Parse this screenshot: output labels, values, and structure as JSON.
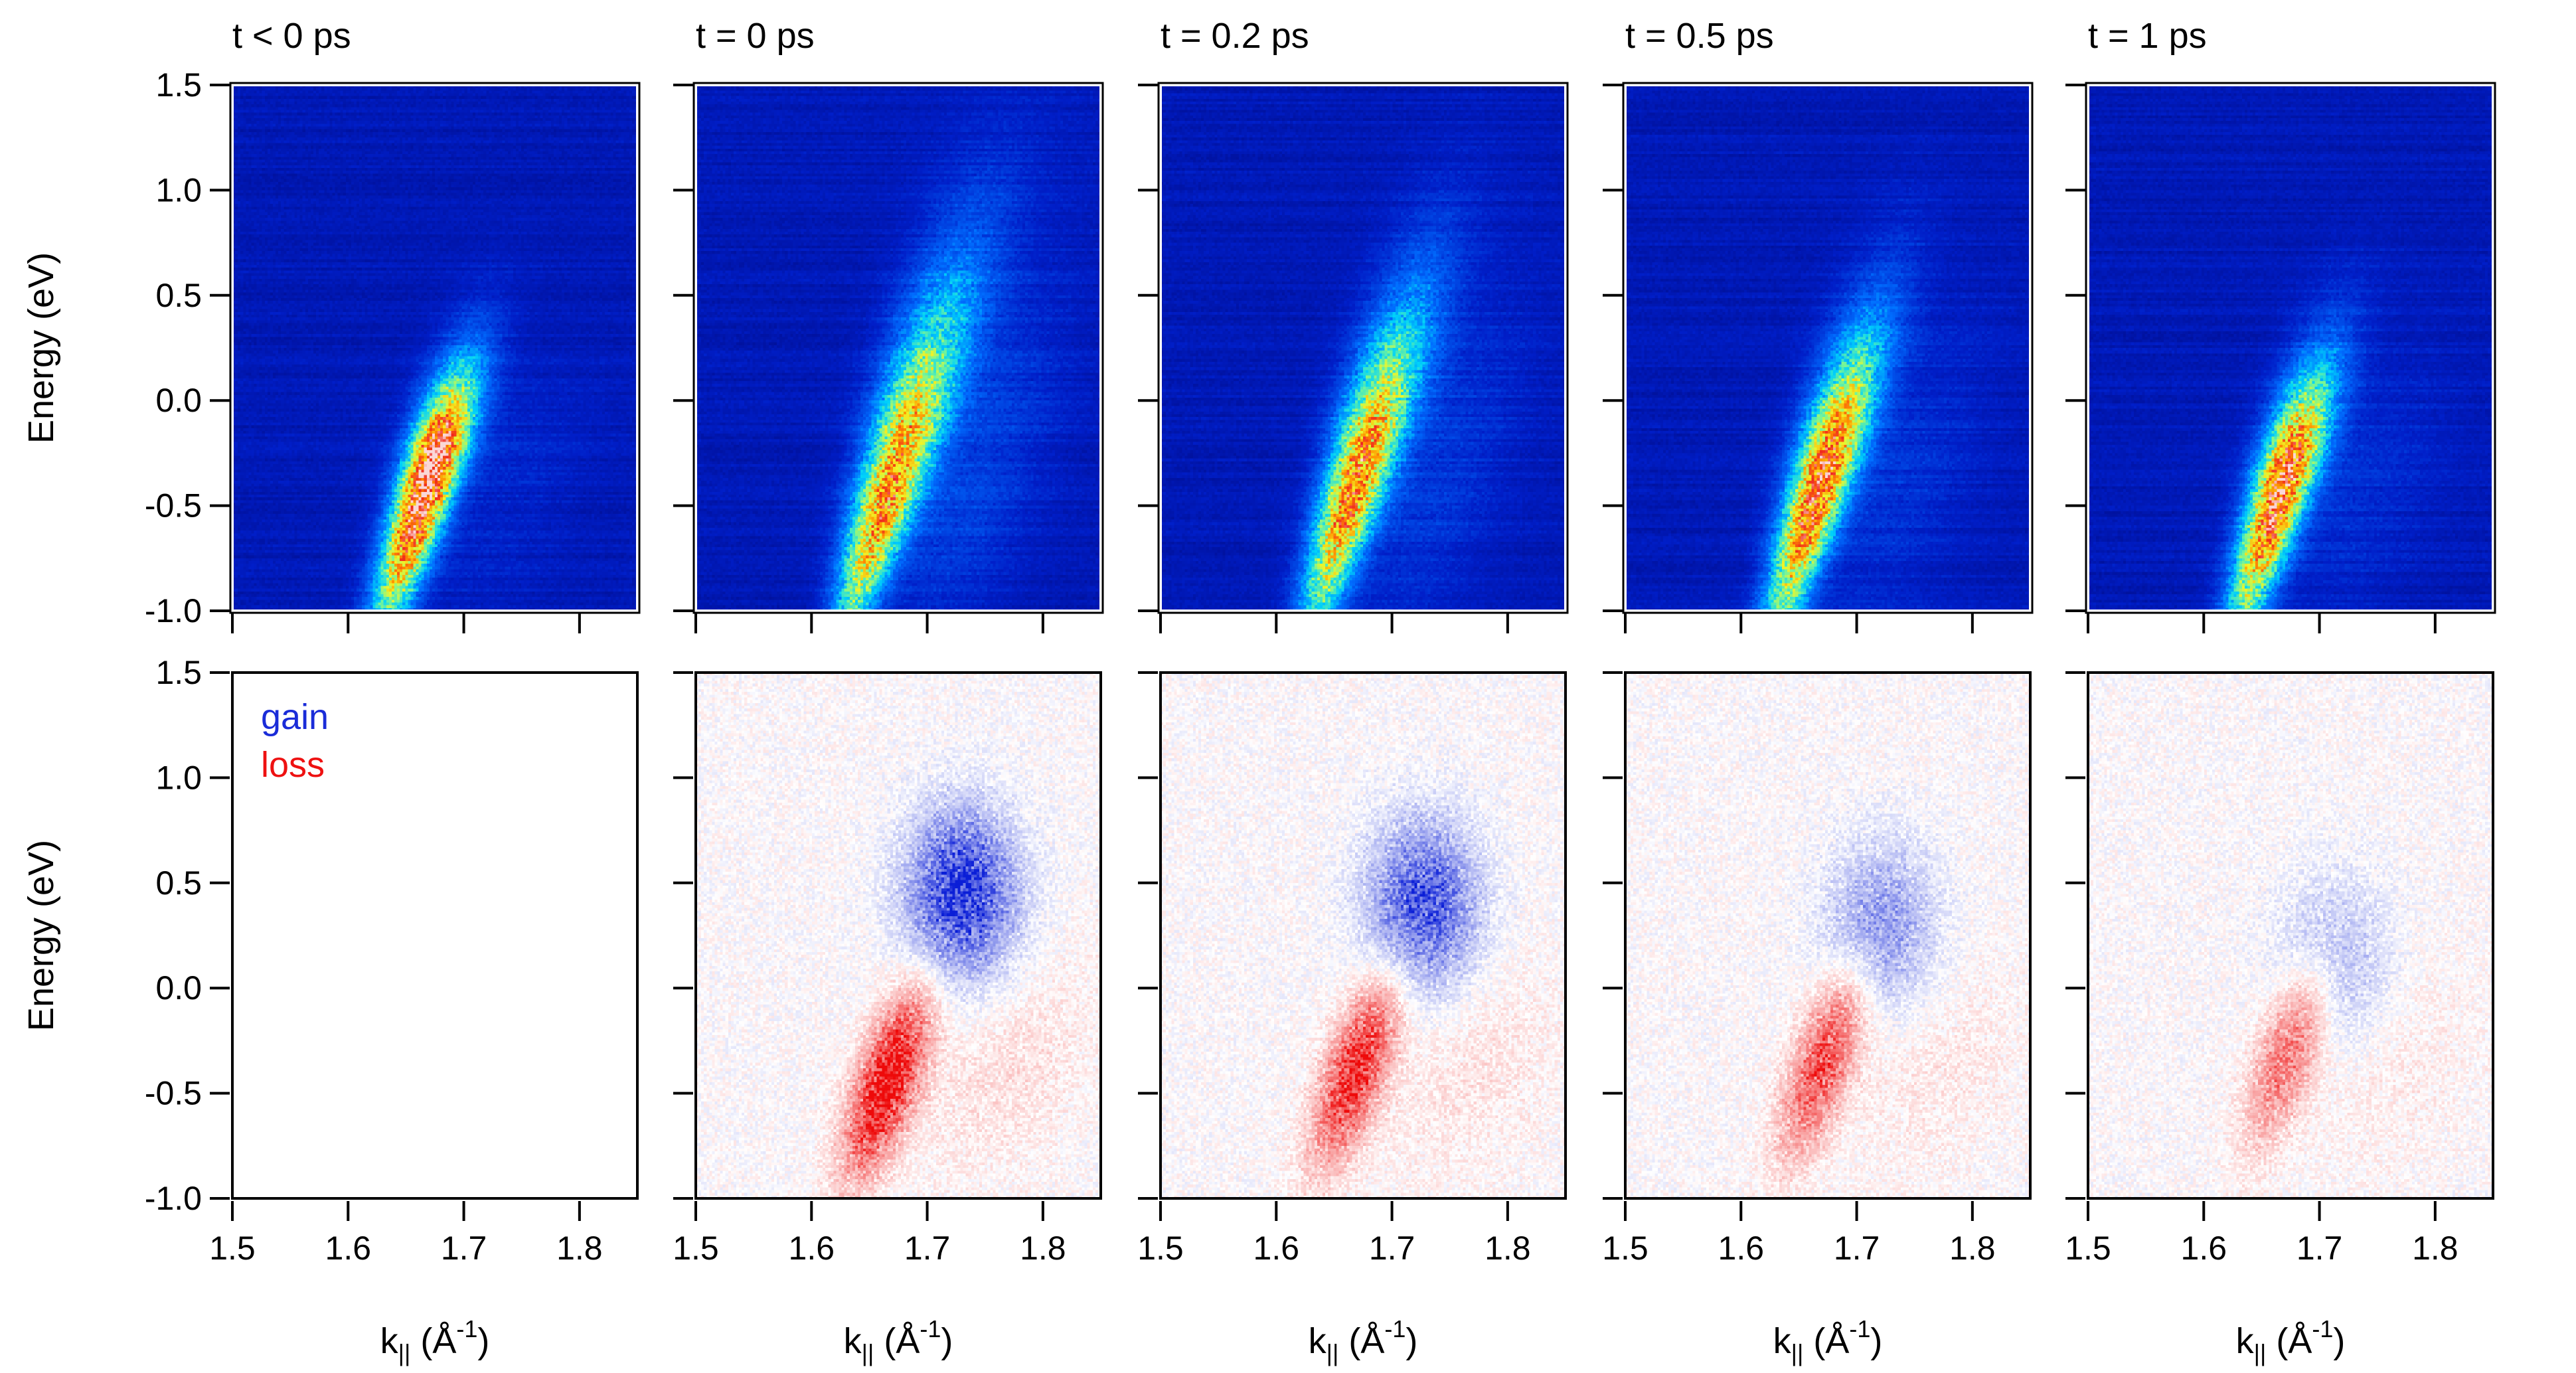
{
  "chart_data": {
    "type": "heatmap",
    "description_panels": "ARPES intensity maps (top row) and difference maps (bottom row) for five pump-probe delays",
    "time_labels": [
      "t < 0 ps",
      "t = 0 ps",
      "t = 0.2 ps",
      "t = 0.5 ps",
      "t = 1 ps"
    ],
    "ylabel": "Energy (eV)",
    "xlabel_base": "k",
    "xlabel_sub": "||",
    "xlabel_unit_open": " (Å",
    "xlabel_unit_sup": "-1",
    "xlabel_unit_close": ")",
    "xlim": [
      1.5,
      1.85
    ],
    "ylim": [
      -1.0,
      1.5
    ],
    "xticks": [
      1.5,
      1.6,
      1.7,
      1.8
    ],
    "xtick_labels": [
      "1.5",
      "1.6",
      "1.7",
      "1.8"
    ],
    "yticks": [
      -1.0,
      -0.5,
      0.0,
      0.5,
      1.0,
      1.5
    ],
    "ytick_labels": [
      "-1.0",
      "-0.5",
      "0.0",
      "0.5",
      "1.0",
      "1.5"
    ],
    "legend": [
      {
        "label": "gain",
        "color": "#1a2cd8"
      },
      {
        "label": "loss",
        "color": "#ee1111"
      }
    ],
    "colors": {
      "intensity_background": "#00109a",
      "gain": "#1a2cd8",
      "loss": "#ee1111"
    },
    "intensity_maps": [
      {
        "time": "t < 0 ps",
        "band_peak_E": -0.35,
        "band_top_E": 0.3,
        "max_intensity": 1.0,
        "spread": 0.45
      },
      {
        "time": "t = 0 ps",
        "band_peak_E": -0.45,
        "band_top_E": 1.0,
        "max_intensity": 0.75,
        "spread": 1.0
      },
      {
        "time": "t = 0.2 ps",
        "band_peak_E": -0.4,
        "band_top_E": 0.8,
        "max_intensity": 0.78,
        "spread": 0.85
      },
      {
        "time": "t = 0.5 ps",
        "band_peak_E": -0.4,
        "band_top_E": 0.6,
        "max_intensity": 0.85,
        "spread": 0.7
      },
      {
        "time": "t = 1 ps",
        "band_peak_E": -0.4,
        "band_top_E": 0.35,
        "max_intensity": 0.88,
        "spread": 0.6
      }
    ],
    "difference_maps": [
      {
        "time": "t < 0 ps",
        "gain_strength": 0.0,
        "loss_strength": 0.0
      },
      {
        "time": "t = 0 ps",
        "gain_center_E": 0.45,
        "gain_strength": 0.9,
        "loss_center_E": -0.45,
        "loss_strength": 1.0
      },
      {
        "time": "t = 0.2 ps",
        "gain_center_E": 0.4,
        "gain_strength": 0.75,
        "loss_center_E": -0.4,
        "loss_strength": 0.85
      },
      {
        "time": "t = 0.5 ps",
        "gain_center_E": 0.3,
        "gain_strength": 0.45,
        "loss_center_E": -0.35,
        "loss_strength": 0.7
      },
      {
        "time": "t = 1 ps",
        "gain_center_E": 0.15,
        "gain_strength": 0.3,
        "loss_center_E": -0.3,
        "loss_strength": 0.55
      }
    ]
  }
}
